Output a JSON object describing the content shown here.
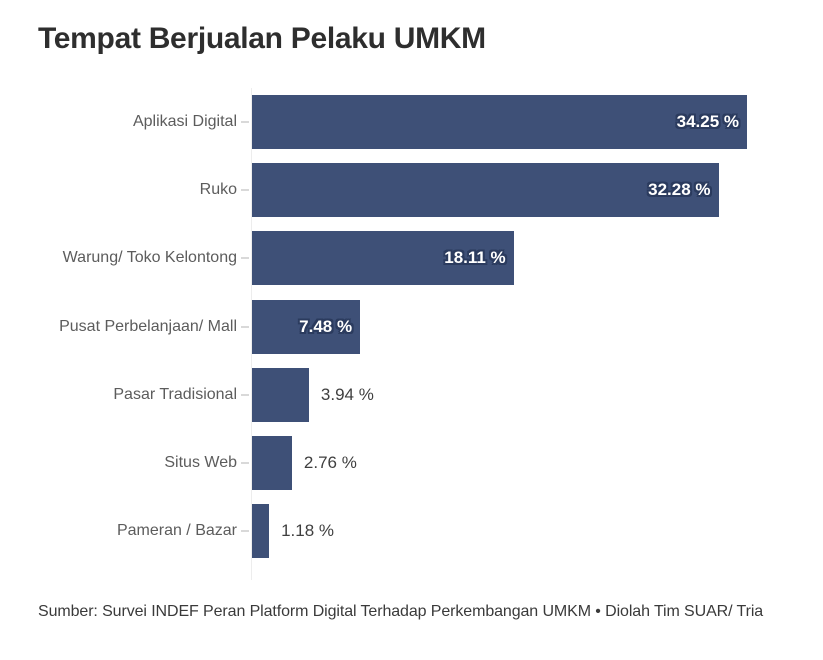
{
  "title": "Tempat Berjualan Pelaku UMKM",
  "source": "Sumber: Survei INDEF Peran Platform Digital Terhadap Perkembangan UMKM • Diolah Tim SUAR/ Tria",
  "chart_data": {
    "type": "bar",
    "orientation": "horizontal",
    "title": "Tempat Berjualan Pelaku UMKM",
    "xlabel": "",
    "ylabel": "",
    "unit": "%",
    "xlim": [
      0,
      35.5
    ],
    "grid": false,
    "legend": false,
    "categories": [
      "Aplikasi Digital",
      "Ruko",
      "Warung/ Toko Kelontong",
      "Pusat Perbelanjaan/ Mall",
      "Pasar Tradisional",
      "Situs Web",
      "Pameran / Bazar"
    ],
    "values": [
      34.25,
      32.28,
      18.11,
      7.48,
      3.94,
      2.76,
      1.18
    ],
    "value_labels": [
      "34.25 %",
      "32.28 %",
      "18.11 %",
      "7.48 %",
      "3.94 %",
      "2.76 %",
      "1.18 %"
    ],
    "label_placement": [
      "inside",
      "inside",
      "inside",
      "inside",
      "outside",
      "outside",
      "outside"
    ]
  },
  "colors": {
    "bar": "#3e5077",
    "value_label_inside": "#ffffff",
    "value_label_halo": "#2b3b5e",
    "value_label_outside": "#3f3f3f",
    "category_label": "#5c5c5c",
    "title": "#2e2e2e",
    "source": "#3a3a3a",
    "tick": "#d9d9d9",
    "axis": "#ededed",
    "background": "#ffffff"
  }
}
